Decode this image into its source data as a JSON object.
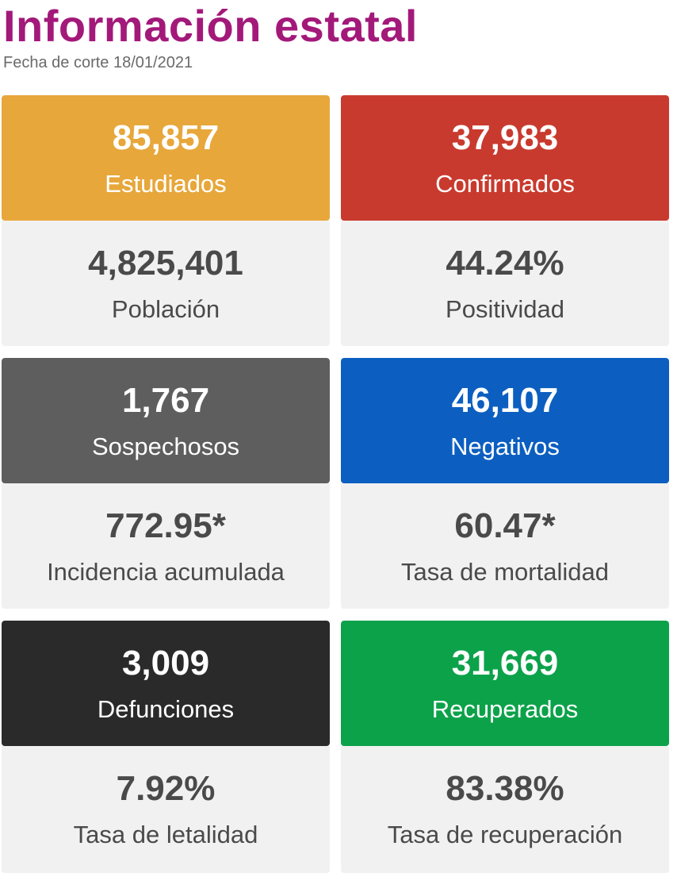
{
  "header": {
    "title": "Información estatal",
    "subtitle": "Fecha de corte 18/01/2021"
  },
  "cards": [
    {
      "head_value": "85,857",
      "head_label": "Estudiados",
      "head_color": "#e7a73b",
      "body_value": "4,825,401",
      "body_label": "Población"
    },
    {
      "head_value": "37,983",
      "head_label": "Confirmados",
      "head_color": "#c93a2e",
      "body_value": "44.24%",
      "body_label": "Positividad"
    },
    {
      "head_value": "1,767",
      "head_label": "Sospechosos",
      "head_color": "#5e5e5e",
      "body_value": "772.95*",
      "body_label": "Incidencia acumulada"
    },
    {
      "head_value": "46,107",
      "head_label": "Negativos",
      "head_color": "#0c5fc0",
      "body_value": "60.47*",
      "body_label": "Tasa de mortalidad"
    },
    {
      "head_value": "3,009",
      "head_label": "Defunciones",
      "head_color": "#2a2a2a",
      "body_value": "7.92%",
      "body_label": "Tasa de letalidad"
    },
    {
      "head_value": "31,669",
      "head_label": "Recuperados",
      "head_color": "#0ca24a",
      "body_value": "83.38%",
      "body_label": "Tasa de recuperación"
    }
  ]
}
